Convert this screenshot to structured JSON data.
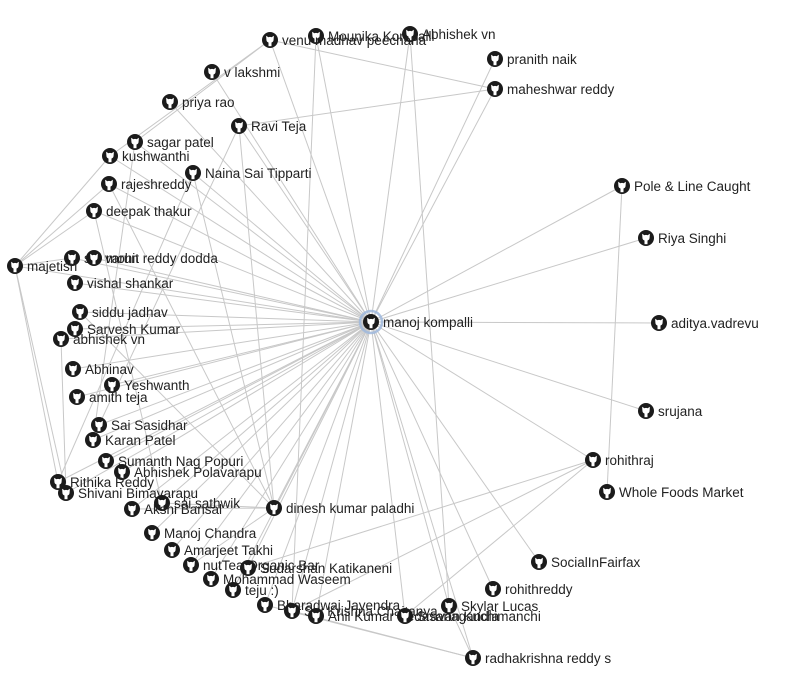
{
  "graph": {
    "colors": {
      "edge": "#c8c8c8",
      "label": "#222222",
      "icon": "#1b1b1b",
      "hub_halo": "#9db7dc"
    },
    "hub": "manoj kompalli",
    "nodes": [
      {
        "id": "manoj kompalli",
        "label": "manoj kompalli",
        "icon": "github-icon",
        "hub": true
      },
      {
        "id": "Mounika Kompalli",
        "label": "Mounika Kompalli",
        "icon": "github-icon"
      },
      {
        "id": "Abhishek vn top",
        "label": "Abhishek vn",
        "icon": "github-icon"
      },
      {
        "id": "venu madhav peecharla",
        "label": "venu madhav peecharla",
        "icon": "github-icon"
      },
      {
        "id": "pranith naik",
        "label": "pranith naik",
        "icon": "github-icon"
      },
      {
        "id": "v lakshmi",
        "label": "v lakshmi",
        "icon": "github-icon"
      },
      {
        "id": "maheshwar reddy",
        "label": "maheshwar reddy",
        "icon": "github-icon"
      },
      {
        "id": "priya rao",
        "label": "priya rao",
        "icon": "github-icon"
      },
      {
        "id": "Ravi Teja",
        "label": "Ravi Teja",
        "icon": "github-icon"
      },
      {
        "id": "sagar patel",
        "label": "sagar patel",
        "icon": "github-icon"
      },
      {
        "id": "kushwanthi",
        "label": "kushwanthi",
        "icon": "github-icon"
      },
      {
        "id": "Naina Sai Tipparti",
        "label": "Naina Sai Tipparti",
        "icon": "github-icon"
      },
      {
        "id": "rajeshreddy",
        "label": "rajeshreddy",
        "icon": "github-icon"
      },
      {
        "id": "Pole & Line Caught",
        "label": "Pole & Line Caught",
        "icon": "github-icon"
      },
      {
        "id": "deepak thakur",
        "label": "deepak thakur",
        "icon": "github-icon"
      },
      {
        "id": "Riya Singhi",
        "label": "Riya Singhi",
        "icon": "github-icon"
      },
      {
        "id": "sai varun",
        "label": "sai varun",
        "icon": "github-icon"
      },
      {
        "id": "mohit reddy dodda",
        "label": "mohit reddy dodda",
        "icon": "github-icon"
      },
      {
        "id": "majetisri",
        "label": "majetisri",
        "icon": "github-icon"
      },
      {
        "id": "vishal shankar",
        "label": "vishal shankar",
        "icon": "github-icon"
      },
      {
        "id": "siddu jadhav",
        "label": "siddu jadhav",
        "icon": "github-icon"
      },
      {
        "id": "Sarvesh Kumar",
        "label": "Sarvesh Kumar",
        "icon": "github-icon"
      },
      {
        "id": "abhishek vn",
        "label": "abhishek vn",
        "icon": "github-icon"
      },
      {
        "id": "aditya.vadrevu",
        "label": "aditya.vadrevu",
        "icon": "github-icon"
      },
      {
        "id": "Abhinav",
        "label": "Abhinav",
        "icon": "github-icon"
      },
      {
        "id": "Yeshwanth",
        "label": "Yeshwanth",
        "icon": "github-icon"
      },
      {
        "id": "amith teja",
        "label": "amith teja",
        "icon": "github-icon"
      },
      {
        "id": "srujana",
        "label": "srujana",
        "icon": "github-icon"
      },
      {
        "id": "Sai Sasidhar",
        "label": "Sai Sasidhar",
        "icon": "github-icon"
      },
      {
        "id": "Karan Patel",
        "label": "Karan Patel",
        "icon": "github-icon"
      },
      {
        "id": "rohithraj",
        "label": "rohithraj",
        "icon": "github-icon"
      },
      {
        "id": "Sumanth Nag Popuri",
        "label": "Sumanth Nag Popuri",
        "icon": "github-icon"
      },
      {
        "id": "Abhishek Polavarapu",
        "label": "Abhishek Polavarapu",
        "icon": "github-icon"
      },
      {
        "id": "Rithika Reddy",
        "label": "Rithika Reddy",
        "icon": "github-icon"
      },
      {
        "id": "Whole Foods Market",
        "label": "Whole Foods Market",
        "icon": "github-icon"
      },
      {
        "id": "Shivani Bimavarapu",
        "label": "Shivani Bimavarapu",
        "icon": "github-icon"
      },
      {
        "id": "sai sathwik",
        "label": "sai sathwik",
        "icon": "github-icon"
      },
      {
        "id": "Akshi Bansal",
        "label": "Akshi Bansal",
        "icon": "github-icon"
      },
      {
        "id": "dinesh kumar paladhi",
        "label": "dinesh kumar paladhi",
        "icon": "github-icon"
      },
      {
        "id": "Manoj Chandra",
        "label": "Manoj Chandra",
        "icon": "github-icon"
      },
      {
        "id": "Amarjeet Takhi",
        "label": "Amarjeet Takhi",
        "icon": "github-icon"
      },
      {
        "id": "SocialInFairfax",
        "label": "SocialInFairfax",
        "icon": "github-icon"
      },
      {
        "id": "nutTea Organic Bar",
        "label": "nutTea Organic Bar",
        "icon": "github-icon"
      },
      {
        "id": "Sudarshan Katikaneni",
        "label": "Sudarshan Katikaneni",
        "icon": "github-icon"
      },
      {
        "id": "Mohammad Waseem",
        "label": "Mohammad Waseem",
        "icon": "github-icon"
      },
      {
        "id": "rohithreddy",
        "label": "rohithreddy",
        "icon": "github-icon"
      },
      {
        "id": "teju :)",
        "label": "teju :)",
        "icon": "github-icon"
      },
      {
        "id": "Bharadwaj Jayendra",
        "label": "Bharadwaj Jayendra",
        "icon": "github-icon"
      },
      {
        "id": "Skylar Lucas",
        "label": "Skylar Lucas",
        "icon": "github-icon"
      },
      {
        "id": "Sai Krishna Chaitanya",
        "label": "Sai Krishna Chaitanya",
        "icon": "github-icon"
      },
      {
        "id": "Anil Kumar Pedasanagandla",
        "label": "Anil Kumar Pedasanagandla",
        "icon": "github-icon"
      },
      {
        "id": "Sravan Kuchimanchi",
        "label": "Sravan Kuchimanchi",
        "icon": "github-icon"
      },
      {
        "id": "radhakrishna reddy s",
        "label": "radhakrishna reddy s",
        "icon": "github-icon"
      }
    ],
    "edges": [
      [
        "manoj kompalli",
        "Mounika Kompalli"
      ],
      [
        "manoj kompalli",
        "Abhishek vn top"
      ],
      [
        "manoj kompalli",
        "venu madhav peecharla"
      ],
      [
        "manoj kompalli",
        "pranith naik"
      ],
      [
        "manoj kompalli",
        "v lakshmi"
      ],
      [
        "manoj kompalli",
        "maheshwar reddy"
      ],
      [
        "manoj kompalli",
        "priya rao"
      ],
      [
        "manoj kompalli",
        "Ravi Teja"
      ],
      [
        "manoj kompalli",
        "sagar patel"
      ],
      [
        "manoj kompalli",
        "kushwanthi"
      ],
      [
        "manoj kompalli",
        "Naina Sai Tipparti"
      ],
      [
        "manoj kompalli",
        "rajeshreddy"
      ],
      [
        "manoj kompalli",
        "Pole & Line Caught"
      ],
      [
        "manoj kompalli",
        "deepak thakur"
      ],
      [
        "manoj kompalli",
        "Riya Singhi"
      ],
      [
        "manoj kompalli",
        "sai varun"
      ],
      [
        "manoj kompalli",
        "mohit reddy dodda"
      ],
      [
        "manoj kompalli",
        "majetisri"
      ],
      [
        "manoj kompalli",
        "vishal shankar"
      ],
      [
        "manoj kompalli",
        "siddu jadhav"
      ],
      [
        "manoj kompalli",
        "Sarvesh Kumar"
      ],
      [
        "manoj kompalli",
        "abhishek vn"
      ],
      [
        "manoj kompalli",
        "aditya.vadrevu"
      ],
      [
        "manoj kompalli",
        "Abhinav"
      ],
      [
        "manoj kompalli",
        "Yeshwanth"
      ],
      [
        "manoj kompalli",
        "amith teja"
      ],
      [
        "manoj kompalli",
        "srujana"
      ],
      [
        "manoj kompalli",
        "Sai Sasidhar"
      ],
      [
        "manoj kompalli",
        "Karan Patel"
      ],
      [
        "manoj kompalli",
        "rohithraj"
      ],
      [
        "manoj kompalli",
        "Sumanth Nag Popuri"
      ],
      [
        "manoj kompalli",
        "Abhishek Polavarapu"
      ],
      [
        "manoj kompalli",
        "Rithika Reddy"
      ],
      [
        "manoj kompalli",
        "Shivani Bimavarapu"
      ],
      [
        "manoj kompalli",
        "sai sathwik"
      ],
      [
        "manoj kompalli",
        "Akshi Bansal"
      ],
      [
        "manoj kompalli",
        "dinesh kumar paladhi"
      ],
      [
        "manoj kompalli",
        "Manoj Chandra"
      ],
      [
        "manoj kompalli",
        "Amarjeet Takhi"
      ],
      [
        "manoj kompalli",
        "SocialInFairfax"
      ],
      [
        "manoj kompalli",
        "nutTea Organic Bar"
      ],
      [
        "manoj kompalli",
        "Sudarshan Katikaneni"
      ],
      [
        "manoj kompalli",
        "Mohammad Waseem"
      ],
      [
        "manoj kompalli",
        "rohithreddy"
      ],
      [
        "manoj kompalli",
        "teju :)"
      ],
      [
        "manoj kompalli",
        "Bharadwaj Jayendra"
      ],
      [
        "manoj kompalli",
        "Skylar Lucas"
      ],
      [
        "manoj kompalli",
        "Sai Krishna Chaitanya"
      ],
      [
        "manoj kompalli",
        "Anil Kumar Pedasanagandla"
      ],
      [
        "manoj kompalli",
        "Sravan Kuchimanchi"
      ],
      [
        "manoj kompalli",
        "radhakrishna reddy s"
      ],
      [
        "Pole & Line Caught",
        "Whole Foods Market"
      ],
      [
        "venu madhav peecharla",
        "maheshwar reddy"
      ],
      [
        "Ravi Teja",
        "maheshwar reddy"
      ],
      [
        "venu madhav peecharla",
        "sagar patel"
      ],
      [
        "venu madhav peecharla",
        "kushwanthi"
      ],
      [
        "Ravi Teja",
        "Sai Sasidhar"
      ],
      [
        "Ravi Teja",
        "dinesh kumar paladhi"
      ],
      [
        "Naina Sai Tipparti",
        "dinesh kumar paladhi"
      ],
      [
        "Naina Sai Tipparti",
        "Rithika Reddy"
      ],
      [
        "sagar patel",
        "Karan Patel"
      ],
      [
        "kushwanthi",
        "majetisri"
      ],
      [
        "rajeshreddy",
        "majetisri"
      ],
      [
        "deepak thakur",
        "majetisri"
      ],
      [
        "sai varun",
        "majetisri"
      ],
      [
        "majetisri",
        "Rithika Reddy"
      ],
      [
        "majetisri",
        "Shivani Bimavarapu"
      ],
      [
        "abhishek vn",
        "Shivani Bimavarapu"
      ],
      [
        "deepak thakur",
        "sai sathwik"
      ],
      [
        "rajeshreddy",
        "dinesh kumar paladhi"
      ],
      [
        "siddu jadhav",
        "dinesh kumar paladhi"
      ],
      [
        "sai sathwik",
        "dinesh kumar paladhi"
      ],
      [
        "Akshi Bansal",
        "dinesh kumar paladhi"
      ],
      [
        "rohithraj",
        "Sai Krishna Chaitanya"
      ],
      [
        "rohithraj",
        "Sravan Kuchimanchi"
      ],
      [
        "rohithraj",
        "Sudarshan Katikaneni"
      ],
      [
        "Skylar Lucas",
        "radhakrishna reddy s"
      ],
      [
        "Sai Krishna Chaitanya",
        "radhakrishna reddy s"
      ],
      [
        "Bharadwaj Jayendra",
        "radhakrishna reddy s"
      ],
      [
        "nutTea Organic Bar",
        "dinesh kumar paladhi"
      ],
      [
        "Abhishek vn top",
        "Skylar Lucas"
      ],
      [
        "Mounika Kompalli",
        "Sai Krishna Chaitanya"
      ]
    ]
  }
}
